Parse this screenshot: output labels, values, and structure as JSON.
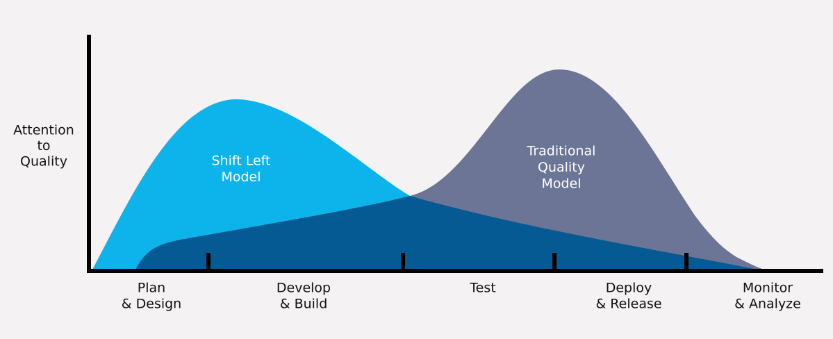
{
  "y_axis_label": {
    "lines": [
      "Attention",
      "to",
      "Quality"
    ]
  },
  "areas": [
    {
      "label_lines": [
        "Shift Left",
        "Model"
      ]
    },
    {
      "label_lines": [
        "Traditional",
        "Quality",
        "Model"
      ]
    }
  ],
  "stages": [
    {
      "lines": [
        "Plan",
        "& Design"
      ]
    },
    {
      "lines": [
        "Develop",
        "& Build"
      ]
    },
    {
      "lines": [
        "Test"
      ]
    },
    {
      "lines": [
        "Deploy",
        "& Release"
      ]
    },
    {
      "lines": [
        "Monitor",
        "& Analyze"
      ]
    }
  ]
}
